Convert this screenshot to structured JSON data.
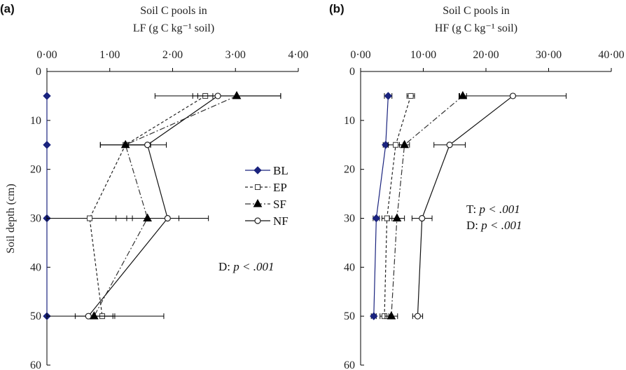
{
  "chart_data": [
    {
      "type": "line",
      "panel_label": "(a)",
      "title_line1": "Soil C pools in",
      "title_line2": "LF  (g C kg⁻¹ soil)",
      "ylabel": "Soil depth (cm)",
      "xlim": [
        0,
        4
      ],
      "ylim": [
        0,
        60
      ],
      "x_ticks": [
        "0·00",
        "1·00",
        "2·00",
        "3·00",
        "4·00"
      ],
      "x_tick_values": [
        0,
        1,
        2,
        3,
        4
      ],
      "y_ticks": [
        "0",
        "10",
        "20",
        "30",
        "40",
        "50",
        "60"
      ],
      "y_tick_values": [
        0,
        10,
        20,
        30,
        40,
        50,
        60
      ],
      "depths": [
        5,
        15,
        30,
        50
      ],
      "series": [
        {
          "name": "BL",
          "values": [
            0.0,
            0.0,
            0.0,
            0.0
          ],
          "errors": [
            0.0,
            0.0,
            0.0,
            0.0
          ],
          "color": "#1a237e",
          "dash": "",
          "marker": "diamond"
        },
        {
          "name": "EP",
          "values": [
            2.52,
            1.25,
            0.68,
            0.88
          ],
          "errors": [
            0.12,
            0.4,
            0.68,
            0.2
          ],
          "color": "#222222",
          "dash": "4,3",
          "marker": "square-open"
        },
        {
          "name": "SF",
          "values": [
            3.02,
            1.25,
            1.6,
            0.75
          ],
          "errors": [
            0.7,
            0.4,
            0.5,
            0.3
          ],
          "color": "#333333",
          "dash": "8,3,2,3",
          "marker": "triangle"
        },
        {
          "name": "NF",
          "values": [
            2.72,
            1.6,
            1.92,
            0.66
          ],
          "errors": [
            1.0,
            0.3,
            0.65,
            1.2
          ],
          "color": "#111111",
          "dash": "",
          "marker": "circle-open"
        }
      ],
      "annotations": [
        "D: p < .001"
      ],
      "legend": [
        "BL",
        "EP",
        "SF",
        "NF"
      ]
    },
    {
      "type": "line",
      "panel_label": "(b)",
      "title_line1": "Soil C pools in",
      "title_line2": "HF  (g C kg⁻¹ soil)",
      "ylabel": "",
      "xlim": [
        0,
        40
      ],
      "ylim": [
        0,
        60
      ],
      "x_ticks": [
        "0·00",
        "10·00",
        "20·00",
        "30·00",
        "40·00"
      ],
      "x_tick_values": [
        0,
        10,
        20,
        30,
        40
      ],
      "y_ticks": [
        "0",
        "10",
        "20",
        "30",
        "40",
        "50",
        "60"
      ],
      "y_tick_values": [
        0,
        10,
        20,
        30,
        40,
        50,
        60
      ],
      "depths": [
        5,
        15,
        30,
        50
      ],
      "series": [
        {
          "name": "BL",
          "values": [
            4.4,
            4.0,
            2.5,
            2.1
          ],
          "errors": [
            0.6,
            0.4,
            0.5,
            0.4
          ],
          "color": "#1a237e",
          "dash": "",
          "marker": "diamond"
        },
        {
          "name": "EP",
          "values": [
            8.0,
            5.6,
            4.2,
            3.8
          ],
          "errors": [
            0.6,
            1.2,
            0.8,
            0.7
          ],
          "color": "#222222",
          "dash": "4,3",
          "marker": "square-open"
        },
        {
          "name": "SF",
          "values": [
            16.3,
            7.0,
            5.8,
            4.9
          ],
          "errors": [
            0.6,
            0.8,
            1.2,
            1.0
          ],
          "color": "#333333",
          "dash": "8,3,2,3",
          "marker": "triangle"
        },
        {
          "name": "NF",
          "values": [
            24.3,
            14.2,
            9.8,
            9.1
          ],
          "errors": [
            8.5,
            2.5,
            1.6,
            0.8
          ],
          "color": "#111111",
          "dash": "",
          "marker": "circle-open"
        }
      ],
      "annotations": [
        "T: p < .001",
        "D: p < .001"
      ]
    }
  ]
}
